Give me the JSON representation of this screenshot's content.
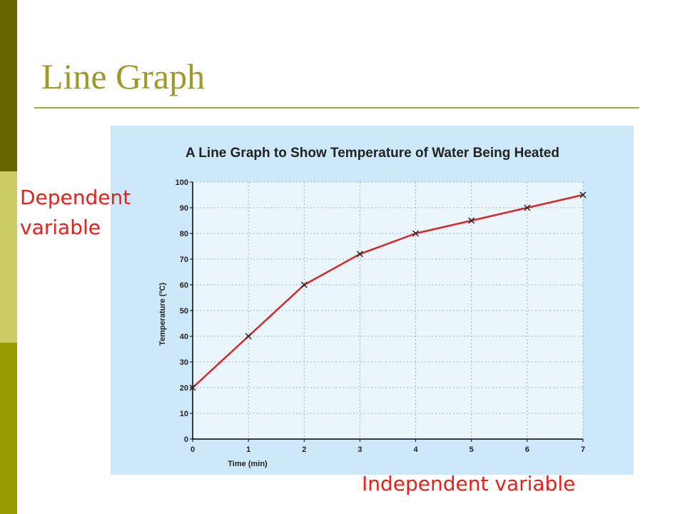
{
  "slide": {
    "title": "Line Graph",
    "annotations": [
      "Dependent variable",
      "Independent variable"
    ]
  },
  "chart_data": {
    "type": "line",
    "title": "A Line Graph to Show Temperature of Water Being Heated",
    "x_label": "Time (min)",
    "y_label": "Temperature (ºC)",
    "x": [
      0,
      1,
      2,
      3,
      4,
      5,
      6,
      7
    ],
    "series": [
      {
        "color": "#d9262b",
        "values": [
          20,
          40,
          60,
          72,
          80,
          85,
          90,
          95
        ]
      }
    ],
    "xlim": [
      0,
      7
    ],
    "xticks": [
      0,
      1,
      2,
      3,
      4,
      5,
      6,
      7
    ],
    "ylim": [
      0,
      100
    ],
    "yticks": [
      0,
      10,
      20,
      30,
      40,
      50,
      60,
      70,
      80,
      90,
      100
    ],
    "grid": true
  }
}
